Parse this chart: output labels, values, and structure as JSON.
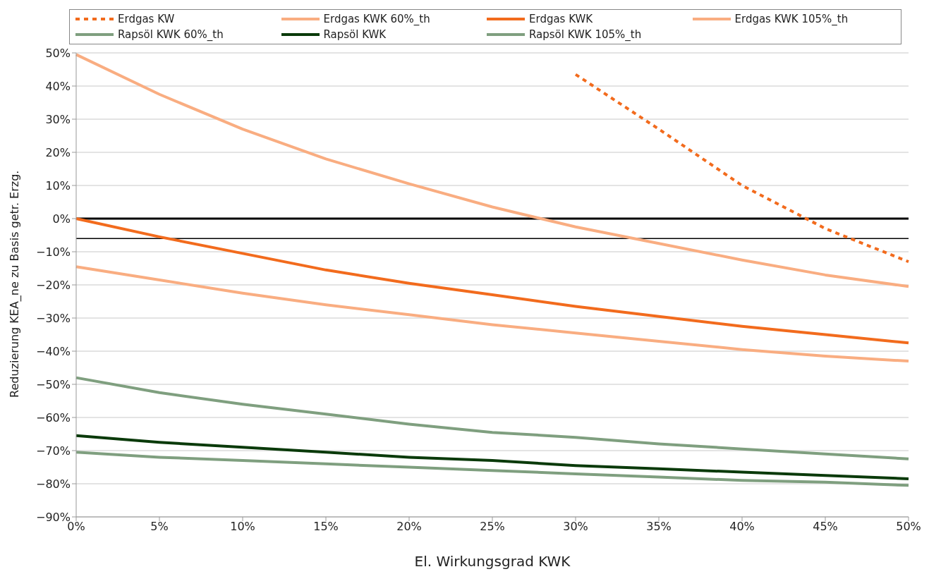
{
  "chart_data": {
    "type": "line",
    "xlabel": "El. Wirkungsgrad KWK",
    "ylabel": "Reduzierung KEA_ne zu Basis getr. Erzg.",
    "categories": [
      "0%",
      "5%",
      "10%",
      "15%",
      "20%",
      "25%",
      "30%",
      "35%",
      "40%",
      "45%",
      "50%"
    ],
    "series": [
      {
        "name": "Erdgas KW",
        "color": "#f26b1d",
        "line_style": "dashed",
        "values": [
          null,
          null,
          null,
          null,
          null,
          null,
          43.5,
          27,
          10,
          -3,
          -13
        ]
      },
      {
        "name": "Erdgas KWK 60%_th",
        "color": "#f9ad81",
        "values": [
          49.5,
          37.5,
          27,
          18,
          10.5,
          3.5,
          -2.5,
          -7.5,
          -12.5,
          -17,
          -20.5
        ]
      },
      {
        "name": "Erdgas KWK",
        "color": "#f26b1d",
        "values": [
          0,
          -5.5,
          -10.5,
          -15.5,
          -19.5,
          -23,
          -26.5,
          -29.5,
          -32.5,
          -35,
          -37.5
        ]
      },
      {
        "name": "Erdgas KWK 105%_th",
        "color": "#f9ad81",
        "values": [
          -14.5,
          -18.5,
          -22.5,
          -26,
          -29,
          -32,
          -34.5,
          -37,
          -39.5,
          -41.5,
          -43
        ]
      },
      {
        "name": "Rapsöl KWK 60%_th",
        "color": "#7f9f7f",
        "values": [
          -48,
          -52.5,
          -56,
          -59,
          -62,
          -64.5,
          -66,
          -68,
          -69.5,
          -71,
          -72.5
        ]
      },
      {
        "name": "Rapsöl KWK",
        "color": "#0a3a0a",
        "values": [
          -65.5,
          -67.5,
          -69,
          -70.5,
          -72,
          -73,
          -74.5,
          -75.5,
          -76.5,
          -77.5,
          -78.5
        ]
      },
      {
        "name": "Rapsöl KWK 105%_th",
        "color": "#7f9f7f",
        "values": [
          -70.5,
          -72,
          -73,
          -74,
          -75,
          -76,
          -77,
          -78,
          -79,
          -79.5,
          -80.5
        ]
      }
    ],
    "ylim": [
      -90,
      50
    ],
    "yticks": [
      {
        "value": 50,
        "label": "50%"
      },
      {
        "value": 40,
        "label": "40%"
      },
      {
        "value": 30,
        "label": "30%"
      },
      {
        "value": 20,
        "label": "20%"
      },
      {
        "value": 10,
        "label": "10%"
      },
      {
        "value": 0,
        "label": "0%"
      },
      {
        "value": -10,
        "label": "−10%"
      },
      {
        "value": -20,
        "label": "−20%"
      },
      {
        "value": -30,
        "label": "−30%"
      },
      {
        "value": -40,
        "label": "−40%"
      },
      {
        "value": -50,
        "label": "−50%"
      },
      {
        "value": -60,
        "label": "−60%"
      },
      {
        "value": -70,
        "label": "−70%"
      },
      {
        "value": -80,
        "label": "−80%"
      },
      {
        "value": -90,
        "label": "−90%"
      }
    ],
    "ref_lines": [
      {
        "axis": "y",
        "value": 0,
        "color": "#000000"
      },
      {
        "axis": "y",
        "value": -6,
        "color": "#000000"
      }
    ],
    "grid": "y",
    "legend": "top",
    "marker": "none",
    "line_style": "solid"
  }
}
